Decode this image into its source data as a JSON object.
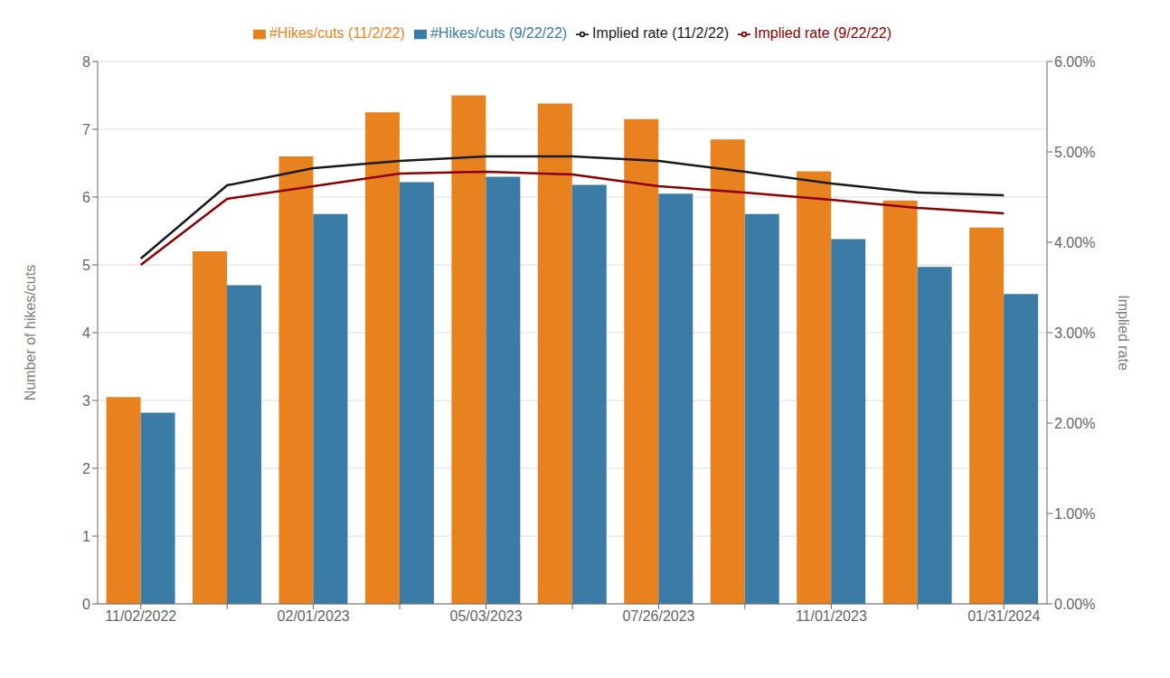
{
  "chart_data": {
    "type": "bar",
    "categories": [
      "11/02/2022",
      null,
      "02/01/2023",
      null,
      "05/03/2023",
      null,
      "07/26/2023",
      null,
      "11/01/2023",
      null,
      "01/31/2024"
    ],
    "series": [
      {
        "name": "#Hikes/cuts (11/2/22)",
        "color": "#E8821E",
        "type": "bar",
        "values": [
          3.05,
          5.2,
          6.6,
          7.25,
          7.5,
          7.38,
          7.15,
          6.85,
          6.38,
          5.95,
          5.55
        ]
      },
      {
        "name": "#Hikes/cuts (9/22/22)",
        "color": "#3A7CA5",
        "type": "bar",
        "values": [
          2.82,
          4.7,
          5.75,
          6.22,
          6.3,
          6.18,
          6.05,
          5.75,
          5.38,
          4.97,
          4.57
        ]
      },
      {
        "name": "Implied rate (11/2/22)",
        "color": "#1a1a1a",
        "type": "line",
        "axis": "y2",
        "values": [
          0.0382,
          0.0463,
          0.0482,
          0.049,
          0.0495,
          0.0495,
          0.049,
          0.0478,
          0.0465,
          0.0455,
          0.0452
        ]
      },
      {
        "name": "Implied rate (9/22/22)",
        "color": "#8B0000",
        "type": "line",
        "axis": "y2",
        "values": [
          0.0375,
          0.0448,
          0.0462,
          0.0476,
          0.0478,
          0.0475,
          0.0462,
          0.0455,
          0.0447,
          0.0438,
          0.0432
        ]
      }
    ],
    "ylabel": "Number of hikes/cuts",
    "y2label": "Implied rate",
    "ylim": [
      0,
      8
    ],
    "yticks": [
      0,
      1,
      2,
      3,
      4,
      5,
      6,
      7,
      8
    ],
    "y2lim": [
      0.0,
      0.06
    ],
    "y2ticks": [
      {
        "value": 0.0,
        "label": "0.00%"
      },
      {
        "value": 0.01,
        "label": "1.00%"
      },
      {
        "value": 0.02,
        "label": "2.00%"
      },
      {
        "value": 0.03,
        "label": "3.00%"
      },
      {
        "value": 0.04,
        "label": "4.00%"
      },
      {
        "value": 0.05,
        "label": "5.00%"
      },
      {
        "value": 0.06,
        "label": "6.00%"
      }
    ],
    "grid": true,
    "legend": "top"
  }
}
